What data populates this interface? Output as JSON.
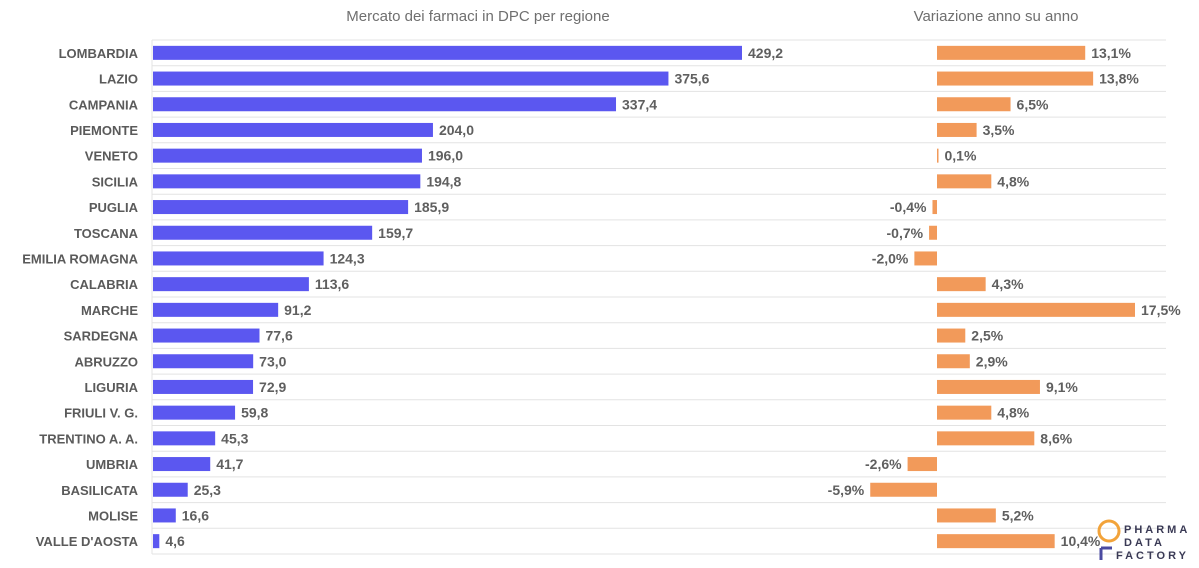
{
  "titles": {
    "left": "Mercato dei farmaci in DPC per regione",
    "right": "Variazione anno su anno"
  },
  "logo": {
    "line1": "PHARMA",
    "line2": "DATA",
    "line3": "FACTORY"
  },
  "colors": {
    "market_bar": "#5b57f0",
    "change_bar": "#f29a5a",
    "logo_accent": "#f2a33a",
    "logo_mark": "#4a4aa0"
  },
  "chart_data": [
    {
      "type": "bar",
      "orientation": "horizontal",
      "title": "Mercato dei farmaci in DPC per regione",
      "categories": [
        "LOMBARDIA",
        "LAZIO",
        "CAMPANIA",
        "PIEMONTE",
        "VENETO",
        "SICILIA",
        "PUGLIA",
        "TOSCANA",
        "EMILIA ROMAGNA",
        "CALABRIA",
        "MARCHE",
        "SARDEGNA",
        "ABRUZZO",
        "LIGURIA",
        "FRIULI V. G.",
        "TRENTINO A. A.",
        "UMBRIA",
        "BASILICATA",
        "MOLISE",
        "VALLE D'AOSTA"
      ],
      "values": [
        429.2,
        375.6,
        337.4,
        204.0,
        196.0,
        194.8,
        185.9,
        159.7,
        124.3,
        113.6,
        91.2,
        77.6,
        73.0,
        72.9,
        59.8,
        45.3,
        41.7,
        25.3,
        16.6,
        4.6
      ],
      "labels": [
        "429,2",
        "375,6",
        "337,4",
        "204,0",
        "196,0",
        "194,8",
        "185,9",
        "159,7",
        "124,3",
        "113,6",
        "91,2",
        "77,6",
        "73,0",
        "72,9",
        "59,8",
        "45,3",
        "41,7",
        "25,3",
        "16,6",
        "4,6"
      ],
      "xlim": [
        0,
        429.2
      ],
      "grid": true
    },
    {
      "type": "bar",
      "orientation": "horizontal",
      "title": "Variazione anno su anno",
      "categories": [
        "LOMBARDIA",
        "LAZIO",
        "CAMPANIA",
        "PIEMONTE",
        "VENETO",
        "SICILIA",
        "PUGLIA",
        "TOSCANA",
        "EMILIA ROMAGNA",
        "CALABRIA",
        "MARCHE",
        "SARDEGNA",
        "ABRUZZO",
        "LIGURIA",
        "FRIULI V. G.",
        "TRENTINO A. A.",
        "UMBRIA",
        "BASILICATA",
        "MOLISE",
        "VALLE D'AOSTA"
      ],
      "values": [
        13.1,
        13.8,
        6.5,
        3.5,
        0.1,
        4.8,
        -0.4,
        -0.7,
        -2.0,
        4.3,
        17.5,
        2.5,
        2.9,
        9.1,
        4.8,
        8.6,
        -2.6,
        -5.9,
        5.2,
        10.4
      ],
      "labels": [
        "13,1%",
        "13,8%",
        "6,5%",
        "3,5%",
        "0,1%",
        "4,8%",
        "-0,4%",
        "-0,7%",
        "-2,0%",
        "4,3%",
        "17,5%",
        "2,5%",
        "2,9%",
        "9,1%",
        "4,8%",
        "8,6%",
        "-2,6%",
        "-5,9%",
        "5,2%",
        "10,4%"
      ],
      "xlim": [
        -5.9,
        17.5
      ]
    }
  ]
}
